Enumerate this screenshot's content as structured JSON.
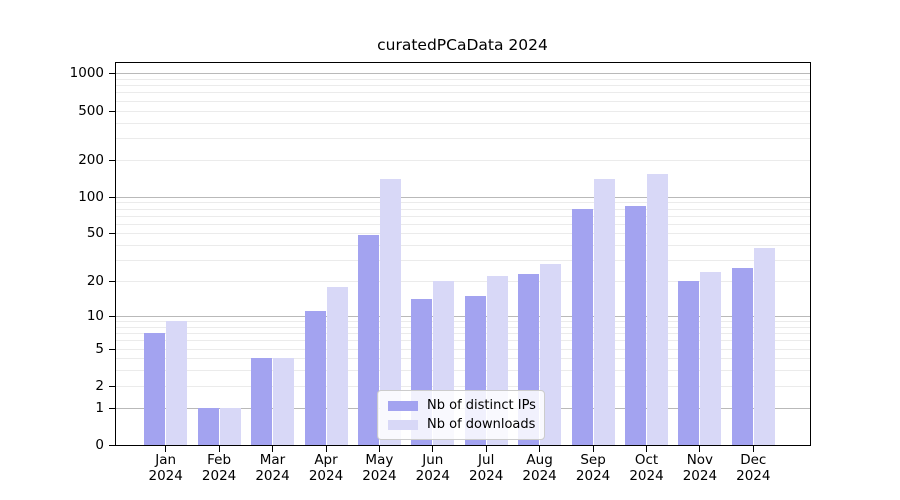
{
  "title": "curatedPCaData 2024",
  "chart_data": {
    "type": "bar",
    "title": "curatedPCaData 2024",
    "categories": [
      "Jan",
      "Feb",
      "Mar",
      "Apr",
      "May",
      "Jun",
      "Jul",
      "Aug",
      "Sep",
      "Oct",
      "Nov",
      "Dec"
    ],
    "year": "2024",
    "series": [
      {
        "name": "Nb of distinct IPs",
        "key": "distinct-ips",
        "color": "#a3a3f0",
        "values": [
          7,
          1,
          4,
          11,
          49,
          14,
          15,
          23,
          80,
          84,
          20,
          26
        ]
      },
      {
        "name": "Nb of downloads",
        "key": "downloads",
        "color": "#d8d8f7",
        "values": [
          9,
          1,
          4,
          18,
          140,
          20,
          22,
          28,
          140,
          154,
          24,
          38
        ]
      }
    ],
    "yticks": [
      0,
      1,
      2,
      5,
      10,
      20,
      50,
      100,
      200,
      500,
      1000
    ],
    "yscale": "log10(value+1)",
    "ylim": [
      0,
      1250
    ],
    "xlabel": "",
    "ylabel": "",
    "grid": true,
    "legend_position": "lower center"
  },
  "colors": {
    "major_grid": "#b9b9b9",
    "minor_grid": "#ebebeb",
    "axis": "#000000",
    "legend_border": "#cccccc",
    "background": "#ffffff"
  }
}
